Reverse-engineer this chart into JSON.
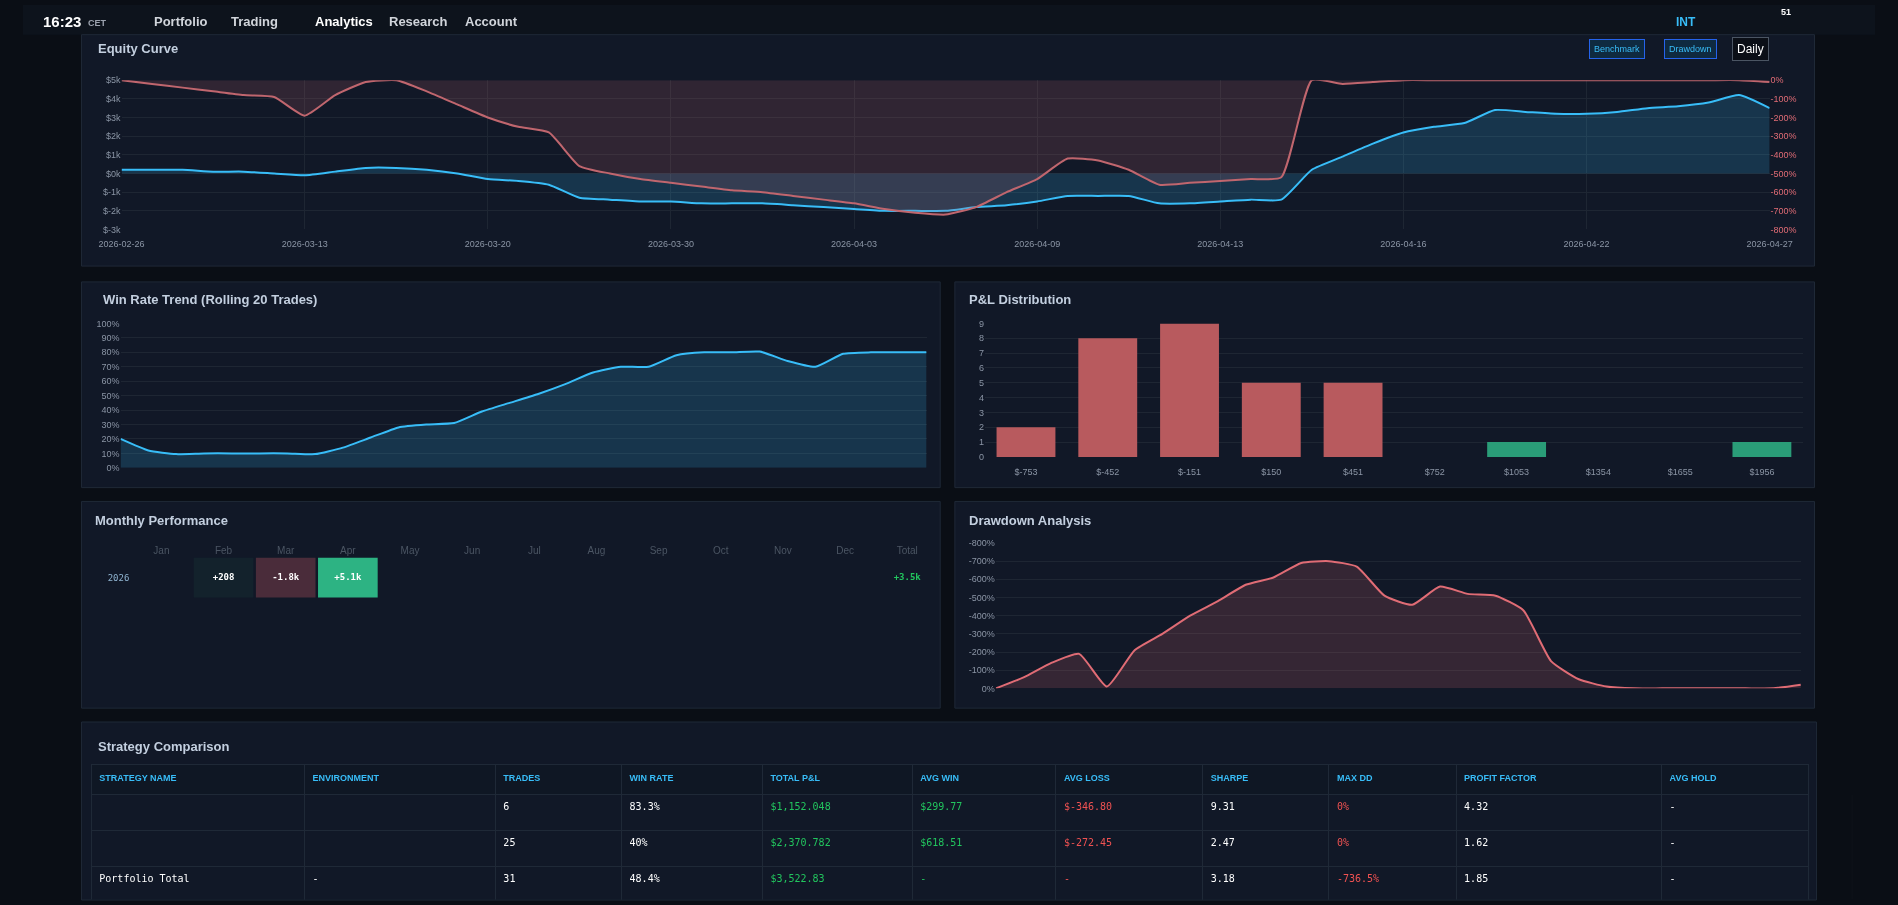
{
  "chart_data": [
    {
      "type": "other",
      "annotations": [
        "16:23",
        "CET",
        "Portfolio",
        "Trading",
        "Analytics",
        "Research",
        "Account",
        "INT",
        "51"
      ]
    },
    {
      "type": "line",
      "title": "Equity Curve",
      "annotations": [
        "Benchmark",
        "Drawdown",
        "Daily"
      ],
      "categories": [
        "2026-02-26",
        null,
        null,
        null,
        null,
        null,
        "2026-03-13",
        null,
        null,
        null,
        null,
        null,
        "2026-03-20",
        null,
        null,
        null,
        null,
        null,
        "2026-03-30",
        null,
        null,
        null,
        null,
        null,
        "2026-04-03",
        null,
        null,
        null,
        null,
        null,
        "2026-04-09",
        null,
        null,
        null,
        null,
        null,
        "2026-04-13",
        null,
        null,
        null,
        null,
        null,
        "2026-04-16",
        null,
        null,
        null,
        null,
        null,
        "2026-04-22",
        null,
        null,
        null,
        null,
        null,
        "2026-04-27"
      ],
      "series": [
        {
          "type": "area",
          "color": "#38bdf8",
          "values": [
            200,
            200,
            200,
            100,
            100,
            0,
            -100,
            100,
            300,
            300,
            200,
            0,
            -300,
            -400,
            -600,
            -1300,
            -1400,
            -1500,
            -1500,
            -1600,
            -1600,
            -1600,
            -1700,
            -1800,
            -1900,
            -2000,
            -2000,
            -2000,
            -1800,
            -1700,
            -1500,
            -1200,
            -1200,
            -1200,
            -1600,
            -1600,
            -1500,
            -1400,
            -1400,
            200,
            900,
            1600,
            2200,
            2500,
            2700,
            3400,
            3300,
            3200,
            3200,
            3300,
            3500,
            3600,
            3800,
            4200,
            3500
          ]
        },
        {
          "type": "area",
          "color": "#c0666e",
          "axis": "y2",
          "values": [
            0,
            -20,
            -40,
            -60,
            -80,
            -90,
            -190,
            -80,
            -10,
            0,
            -60,
            -130,
            -200,
            -250,
            -280,
            -460,
            -500,
            -530,
            -550,
            -570,
            -590,
            -600,
            -620,
            -640,
            -660,
            -690,
            -710,
            -720,
            -680,
            -600,
            -530,
            -420,
            -430,
            -480,
            -560,
            -550,
            -540,
            -530,
            -520,
            0,
            -20,
            -10,
            0,
            0,
            0,
            0,
            0,
            0,
            0,
            0,
            0,
            0,
            0,
            0,
            -10
          ]
        }
      ],
      "ylim": [
        -3000,
        5000
      ],
      "yticks": [
        {
          "value": 5000,
          "label": "$5k"
        },
        {
          "value": 4000,
          "label": "$4k"
        },
        {
          "value": 3000,
          "label": "$3k"
        },
        {
          "value": 2000,
          "label": "$2k"
        },
        {
          "value": 1000,
          "label": "$1k"
        },
        {
          "value": 0,
          "label": "$0k"
        },
        {
          "value": -1000,
          "label": "$-1k"
        },
        {
          "value": -2000,
          "label": "$-2k"
        },
        {
          "value": -3000,
          "label": "$-3k"
        }
      ],
      "y2lim": [
        -800,
        0
      ],
      "y2ticks": [
        {
          "value": 0,
          "label": "0%"
        },
        {
          "value": -100,
          "label": "-100%"
        },
        {
          "value": -200,
          "label": "-200%"
        },
        {
          "value": -300,
          "label": "-300%"
        },
        {
          "value": -400,
          "label": "-400%"
        },
        {
          "value": -500,
          "label": "-500%"
        },
        {
          "value": -600,
          "label": "-600%"
        },
        {
          "value": -700,
          "label": "-700%"
        },
        {
          "value": -800,
          "label": "-800%"
        }
      ],
      "grid": true
    },
    {
      "type": "area",
      "title": "Win Rate Trend (Rolling 20 Trades)",
      "color": "#38bdf8",
      "categories": [
        null,
        null,
        null,
        null,
        null,
        null,
        null,
        null,
        null,
        null,
        null,
        null,
        null,
        null,
        null,
        null,
        null,
        null,
        null,
        null,
        null,
        null,
        null,
        null,
        null,
        null,
        null,
        null,
        null,
        null
      ],
      "values": [
        20,
        12,
        9.5,
        10,
        10,
        10,
        10,
        9.5,
        14,
        21,
        28,
        30,
        31,
        39,
        45,
        51,
        58,
        66,
        70,
        70,
        78,
        80,
        80,
        80.5,
        74,
        70,
        79,
        80,
        80,
        80
      ],
      "ylim": [
        0,
        100
      ],
      "yticks": [
        {
          "value": 0,
          "label": "0%"
        },
        {
          "value": 10,
          "label": "10%"
        },
        {
          "value": 20,
          "label": "20%"
        },
        {
          "value": 30,
          "label": "30%"
        },
        {
          "value": 40,
          "label": "40%"
        },
        {
          "value": 50,
          "label": "50%"
        },
        {
          "value": 60,
          "label": "60%"
        },
        {
          "value": 70,
          "label": "70%"
        },
        {
          "value": 80,
          "label": "80%"
        },
        {
          "value": 90,
          "label": "90%"
        },
        {
          "value": 100,
          "label": "100%"
        }
      ],
      "grid": "y",
      "tick_labels": "y"
    },
    {
      "type": "bar",
      "title": "P&L Distribution",
      "categories": [
        "$-753",
        "$-452",
        "$-151",
        "$150",
        "$451",
        "$752",
        "$1053",
        "$1354",
        "$1655",
        "$1956"
      ],
      "values": [
        2,
        8,
        9,
        5,
        5,
        0,
        1,
        0,
        0,
        1
      ],
      "colors": [
        "#b85a5e",
        "#b85a5e",
        "#b85a5e",
        "#b85a5e",
        "#b85a5e",
        "#b85a5e",
        "#2a9d78",
        "#2a9d78",
        "#2a9d78",
        "#2a9d78"
      ],
      "ylim": [
        0,
        9
      ],
      "yticks": [
        0,
        1,
        2,
        3,
        4,
        5,
        6,
        7,
        8,
        9
      ],
      "grid": "y"
    },
    {
      "type": "heatmap",
      "title": "Monthly Performance",
      "categories": [
        "Jan",
        "Feb",
        "Mar",
        "Apr",
        "May",
        "Jun",
        "Jul",
        "Aug",
        "Sep",
        "Oct",
        "Nov",
        "Dec",
        "Total"
      ],
      "y_categories": [
        "2026"
      ],
      "cells": [
        [
          null,
          208,
          -1800,
          5100,
          null,
          null,
          null,
          null,
          null,
          null,
          null,
          null,
          null
        ]
      ],
      "cell_labels": [
        [
          null,
          "+208",
          "-1.8k",
          "+5.1k",
          null,
          null,
          null,
          null,
          null,
          null,
          null,
          null,
          "+3.5k"
        ]
      ]
    },
    {
      "type": "area",
      "title": "Drawdown Analysis",
      "color": "#e06c75",
      "categories": [
        null,
        null,
        null,
        null,
        null,
        null,
        null,
        null,
        null,
        null,
        null,
        null,
        null,
        null,
        null,
        null,
        null,
        null,
        null,
        null,
        null,
        null,
        null,
        null,
        null,
        null,
        null,
        null,
        null,
        null
      ],
      "values": [
        0,
        -60,
        -140,
        -190,
        -10,
        -210,
        -300,
        -400,
        -480,
        -570,
        -610,
        -690,
        -700,
        -670,
        -510,
        -460,
        -560,
        -520,
        -510,
        -430,
        -150,
        -50,
        -10,
        0,
        0,
        0,
        0,
        0,
        0,
        -20
      ],
      "ylim": [
        0,
        -800
      ],
      "yticks": [
        {
          "value": 0,
          "label": "0%"
        },
        {
          "value": -100,
          "label": "-100%"
        },
        {
          "value": -200,
          "label": "-200%"
        },
        {
          "value": -300,
          "label": "-300%"
        },
        {
          "value": -400,
          "label": "-400%"
        },
        {
          "value": -500,
          "label": "-500%"
        },
        {
          "value": -600,
          "label": "-600%"
        },
        {
          "value": -700,
          "label": "-700%"
        },
        {
          "value": -800,
          "label": "-800%"
        }
      ],
      "grid": "y",
      "tick_labels": "y"
    },
    {
      "type": "other",
      "title": "Strategy Comparison",
      "categories": [
        "STRATEGY NAME",
        "ENVIRONMENT",
        "TRADES",
        "WIN RATE",
        "TOTAL P&L",
        "AVG WIN",
        "AVG LOSS",
        "SHARPE",
        "MAX DD",
        "PROFIT FACTOR",
        "AVG HOLD"
      ],
      "y_categories": [
        null,
        null,
        "Portfolio Total"
      ],
      "cell_labels": [
        [
          null,
          "6",
          "83.3%",
          "$1,152.048",
          "$299.77",
          "$-346.80",
          "9.31",
          "0%",
          "4.32",
          "-"
        ],
        [
          null,
          "25",
          "40%",
          "$2,370.782",
          "$618.51",
          "$-272.45",
          "2.47",
          "0%",
          "1.62",
          "-"
        ],
        [
          "-",
          "31",
          "48.4%",
          "$3,522.83",
          "-",
          "-",
          "3.18",
          "-736.5%",
          "1.85",
          "-"
        ]
      ]
    }
  ]
}
